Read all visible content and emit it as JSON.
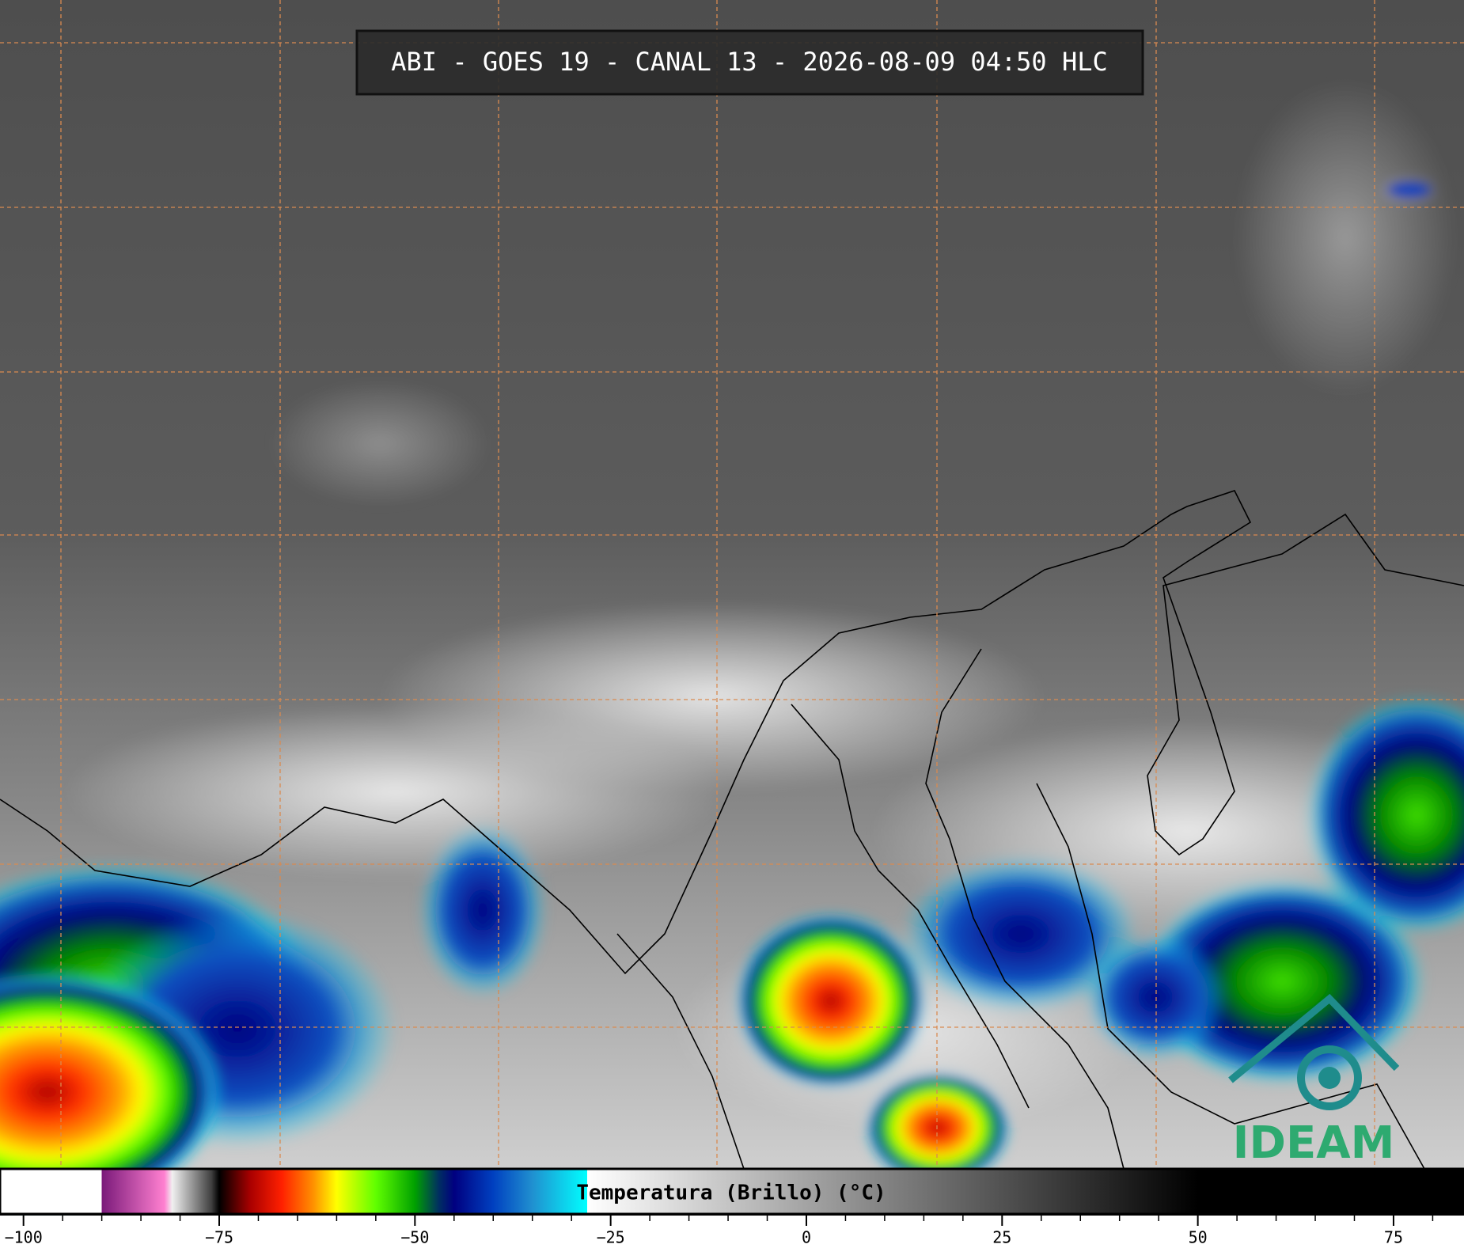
{
  "title": "ABI - GOES 19 - CANAL 13 - 2026-08-09 04:50 HLC",
  "colorbar": {
    "label": "Temperatura (Brillo) (°C)",
    "range": [
      -103,
      84
    ],
    "stops": [
      [
        -103,
        "#ffffff"
      ],
      [
        -90,
        "#ffffff"
      ],
      [
        -90,
        "#7a1a7a"
      ],
      [
        -82,
        "#ff80d0"
      ],
      [
        -81,
        "#f0f0f0"
      ],
      [
        -76,
        "#404040"
      ],
      [
        -75,
        "#000000"
      ],
      [
        -71,
        "#aa0000"
      ],
      [
        -67,
        "#ff2000"
      ],
      [
        -63,
        "#ff9000"
      ],
      [
        -60,
        "#ffff00"
      ],
      [
        -55,
        "#60ff00"
      ],
      [
        -50,
        "#00a000"
      ],
      [
        -47,
        "#003060"
      ],
      [
        -45,
        "#000080"
      ],
      [
        -40,
        "#0040c0"
      ],
      [
        -35,
        "#2090d0"
      ],
      [
        -28,
        "#00ffff"
      ],
      [
        -28,
        "#ffffff"
      ],
      [
        50,
        "#000000"
      ],
      [
        84,
        "#000000"
      ]
    ],
    "ticks": [
      {
        "value": -100,
        "label": "−100"
      },
      {
        "value": -75,
        "label": "−75"
      },
      {
        "value": -50,
        "label": "−50"
      },
      {
        "value": -25,
        "label": "−25"
      },
      0,
      25,
      50,
      75
    ],
    "minor_ticks": [
      -95,
      -90,
      -85,
      -80,
      -70,
      -65,
      -60,
      -55,
      -45,
      -40,
      -35,
      -30,
      -20,
      -15,
      -10,
      -5,
      5,
      10,
      15,
      20,
      30,
      35,
      40,
      45,
      55,
      60,
      65,
      70,
      80
    ]
  },
  "logo": {
    "text": "IDEAM"
  }
}
